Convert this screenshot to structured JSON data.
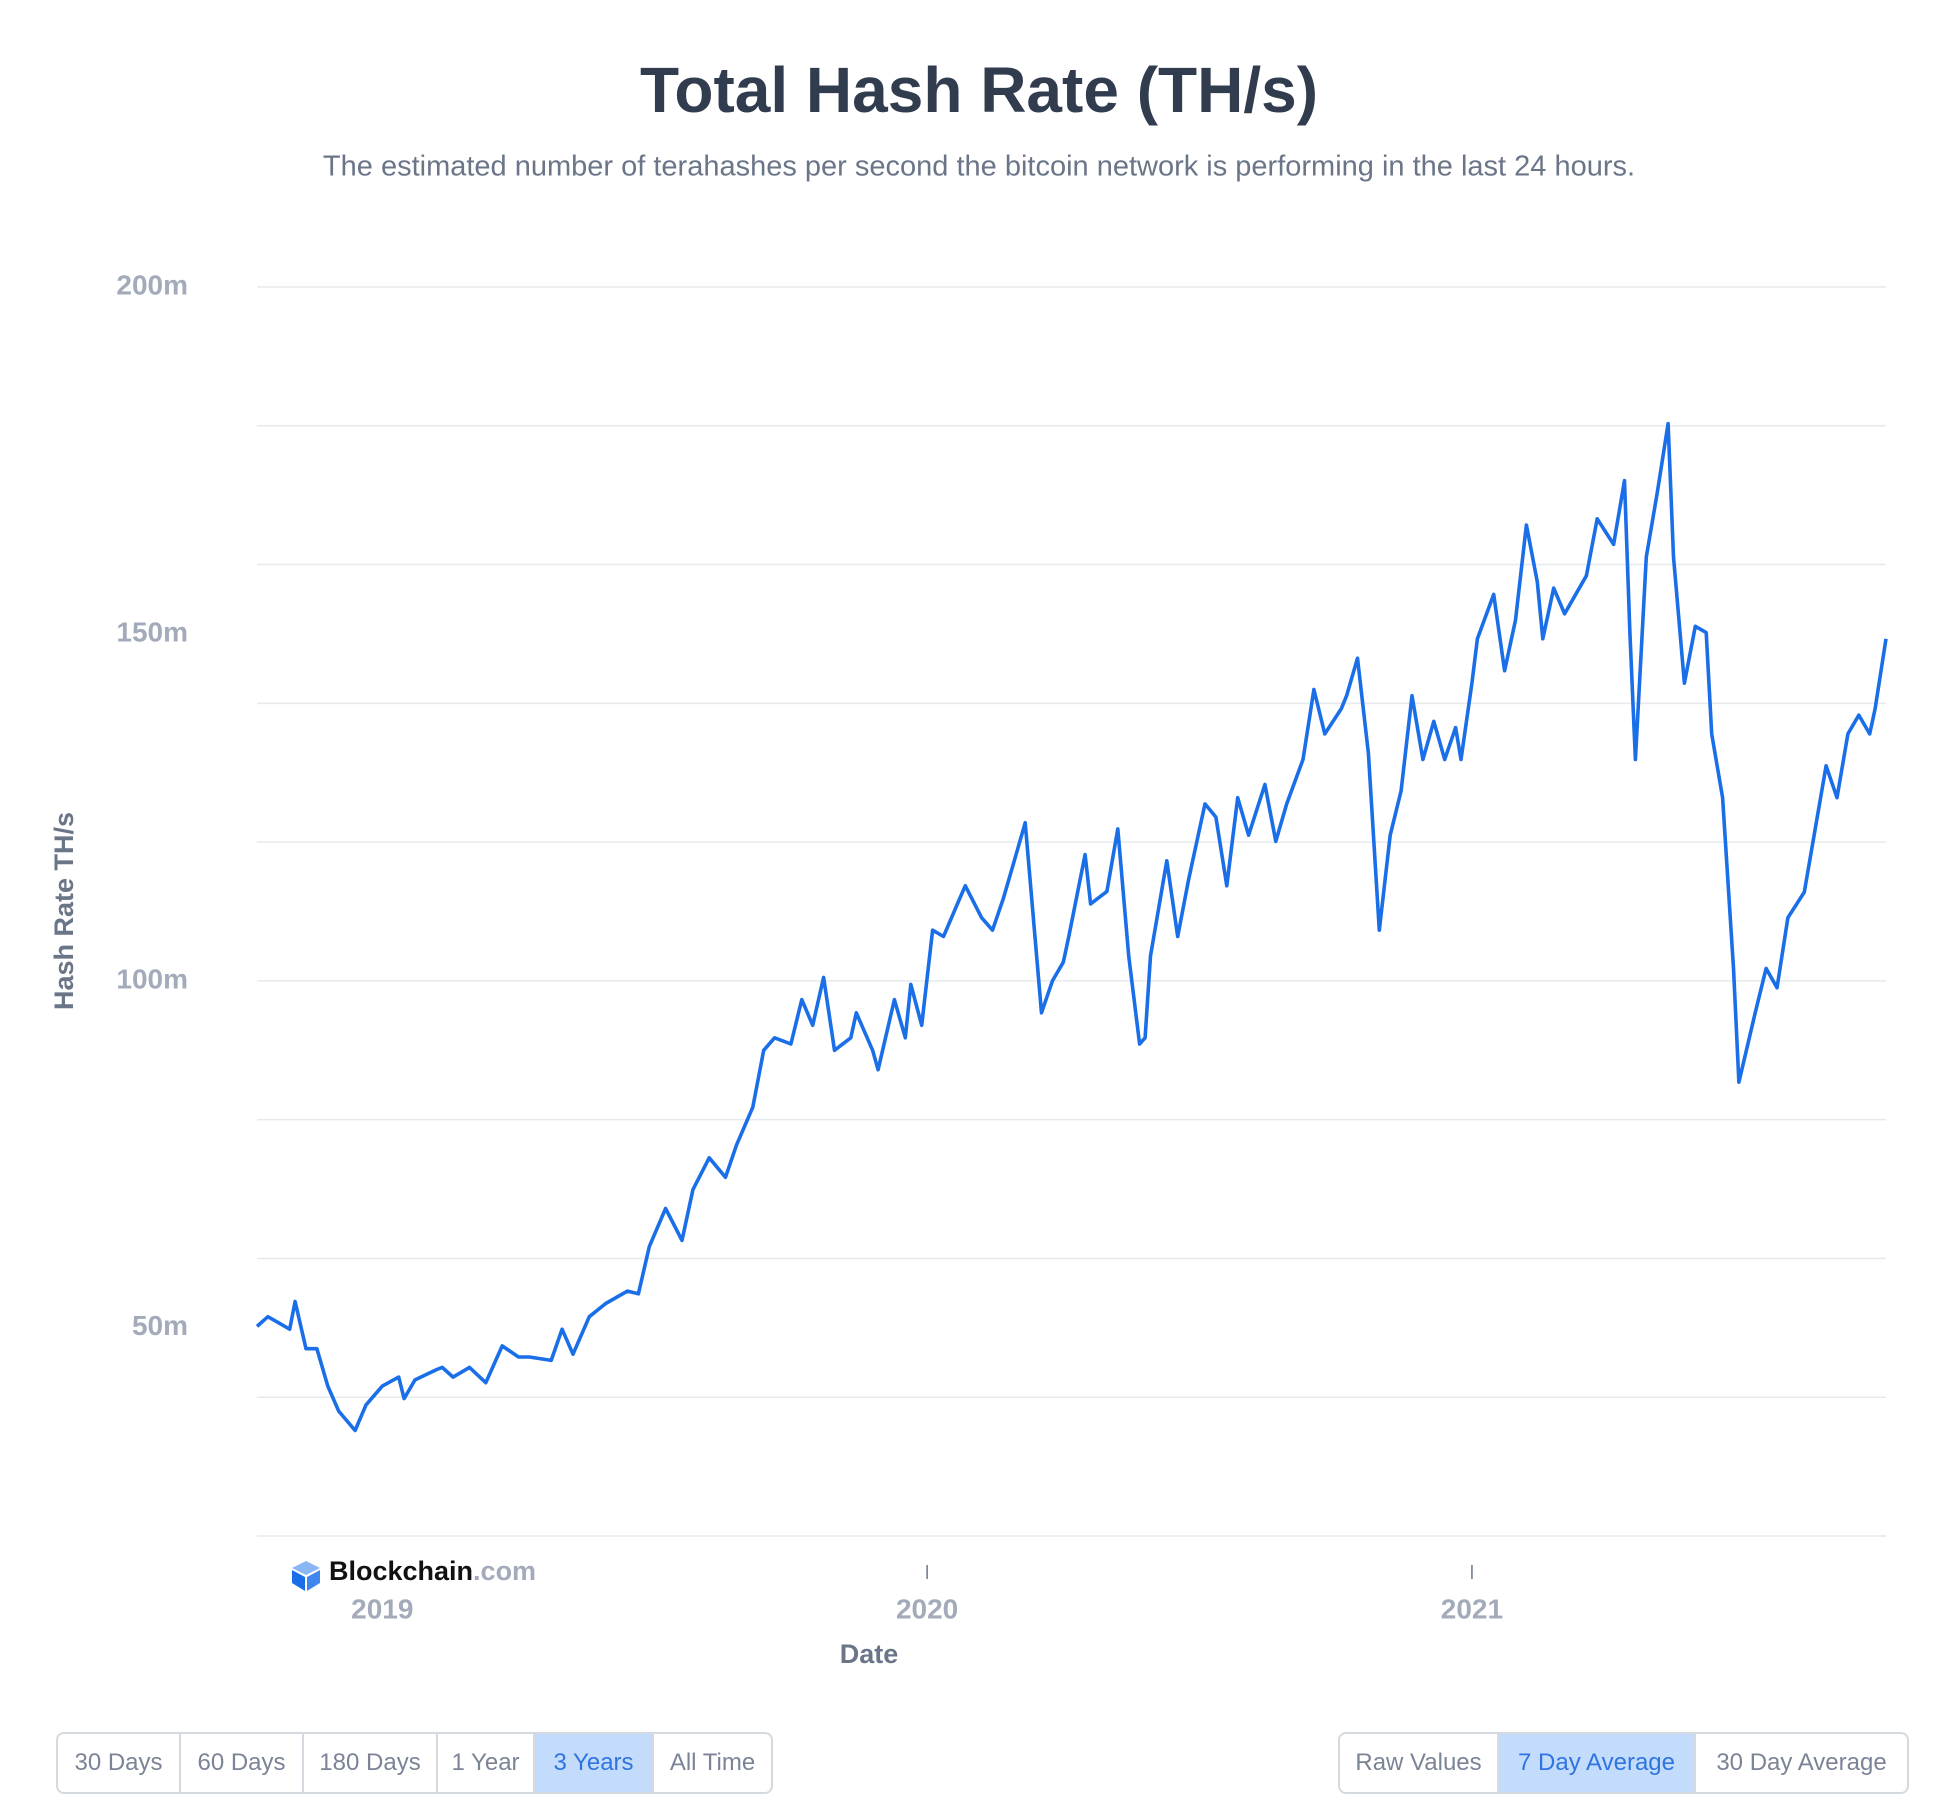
{
  "chart_data": {
    "type": "line",
    "title": "Total Hash Rate (TH/s)",
    "subtitle": "The estimated number of terahashes per second the bitcoin network is performing in the last 24 hours.",
    "y_label": "Hash Rate TH/s",
    "x_label": "Date",
    "color": "#1a6fe8",
    "xlim": [
      2018.77,
      2021.76
    ],
    "xticks": [
      2019,
      2020,
      2021
    ],
    "ylim": [
      20,
      200
    ],
    "yticks": [
      {
        "value": 50,
        "label": "50m"
      },
      {
        "value": 100,
        "label": "100m"
      },
      {
        "value": 150,
        "label": "150m"
      },
      {
        "value": 200,
        "label": "200m"
      }
    ],
    "ygrid": [
      20,
      40,
      60,
      80,
      100,
      120,
      140,
      160,
      180,
      200
    ],
    "x": [
      2018.77,
      2018.79,
      2018.83,
      2018.84,
      2018.86,
      2018.88,
      2018.9,
      2018.92,
      2018.95,
      2018.97,
      2019.0,
      2019.03,
      2019.04,
      2019.06,
      2019.1,
      2019.11,
      2019.13,
      2019.16,
      2019.19,
      2019.22,
      2019.25,
      2019.27,
      2019.31,
      2019.33,
      2019.35,
      2019.38,
      2019.41,
      2019.45,
      2019.47,
      2019.49,
      2019.52,
      2019.55,
      2019.57,
      2019.6,
      2019.63,
      2019.65,
      2019.68,
      2019.7,
      2019.72,
      2019.75,
      2019.77,
      2019.79,
      2019.81,
      2019.83,
      2019.86,
      2019.87,
      2019.9,
      2019.91,
      2019.94,
      2019.96,
      2019.97,
      2019.99,
      2020.01,
      2020.03,
      2020.06,
      2020.07,
      2020.1,
      2020.12,
      2020.14,
      2020.16,
      2020.18,
      2020.19,
      2020.21,
      2020.23,
      2020.25,
      2020.26,
      2020.29,
      2020.3,
      2020.33,
      2020.35,
      2020.37,
      2020.39,
      2020.4,
      2020.41,
      2020.44,
      2020.46,
      2020.48,
      2020.51,
      2020.53,
      2020.55,
      2020.57,
      2020.59,
      2020.62,
      2020.64,
      2020.66,
      2020.69,
      2020.71,
      2020.73,
      2020.76,
      2020.77,
      2020.79,
      2020.81,
      2020.83,
      2020.85,
      2020.87,
      2020.89,
      2020.91,
      2020.93,
      2020.95,
      2020.97,
      2020.98,
      2021.0,
      2021.01,
      2021.04,
      2021.06,
      2021.08,
      2021.1,
      2021.12,
      2021.13,
      2021.15,
      2021.17,
      2021.21,
      2021.23,
      2021.26,
      2021.28,
      2021.29,
      2021.3,
      2021.32,
      2021.34,
      2021.36,
      2021.37,
      2021.39,
      2021.41,
      2021.43,
      2021.44,
      2021.46,
      2021.48,
      2021.49,
      2021.52,
      2021.54,
      2021.56,
      2021.58,
      2021.61,
      2021.62,
      2021.64,
      2021.65,
      2021.67,
      2021.69,
      2021.71,
      2021.73,
      2021.74,
      2021.76
    ],
    "values": [
      50.2,
      51.6,
      49.8,
      53.8,
      47,
      47,
      41.6,
      38,
      35.2,
      38.9,
      41.6,
      42.9,
      39.8,
      42.5,
      44,
      44.3,
      42.9,
      44.3,
      42.1,
      47.4,
      45.8,
      45.8,
      45.3,
      49.8,
      46.2,
      51.6,
      53.5,
      55.3,
      54.9,
      61.7,
      67.2,
      62.6,
      69.9,
      74.5,
      71.7,
      76.3,
      81.8,
      90,
      91.8,
      90.9,
      97.3,
      93.6,
      100.5,
      90,
      91.8,
      95.4,
      90,
      87.2,
      97.3,
      91.8,
      99.5,
      93.6,
      107.3,
      106.4,
      111.9,
      113.7,
      109.1,
      107.3,
      111.9,
      117.3,
      122.8,
      113.7,
      95.4,
      100,
      102.7,
      106.4,
      118.2,
      111.1,
      112.9,
      121.9,
      103.6,
      90.9,
      91.8,
      103.6,
      117.3,
      106.4,
      114.6,
      125.5,
      123.6,
      113.7,
      126.4,
      121,
      128.3,
      120.1,
      125.5,
      131.9,
      142,
      135.6,
      139.2,
      141.1,
      146.5,
      132.8,
      107.3,
      121,
      127.4,
      141.1,
      131.9,
      137.4,
      131.9,
      136.5,
      131.9,
      142.9,
      149.3,
      155.7,
      144.7,
      152,
      165.7,
      157.5,
      149.3,
      156.6,
      152.9,
      158.4,
      166.6,
      162.9,
      172.1,
      150.2,
      131.9,
      161.1,
      170.3,
      180.3,
      161.1,
      142.9,
      151.1,
      150.2,
      135.6,
      126.4,
      101.8,
      85.4,
      95.4,
      101.8,
      99,
      109.1,
      112.8,
      117.3,
      126.4,
      131,
      126.4,
      135.6,
      138.3,
      135.6,
      139.2,
      149.3
    ],
    "brand_name": "Blockchain",
    "brand_suffix": ".com"
  },
  "controls": {
    "ranges": [
      "30 Days",
      "60 Days",
      "180 Days",
      "1 Year",
      "3 Years",
      "All Time"
    ],
    "range_selected": 4,
    "averages": [
      "Raw Values",
      "7 Day Average",
      "30 Day Average"
    ],
    "average_selected": 1
  }
}
